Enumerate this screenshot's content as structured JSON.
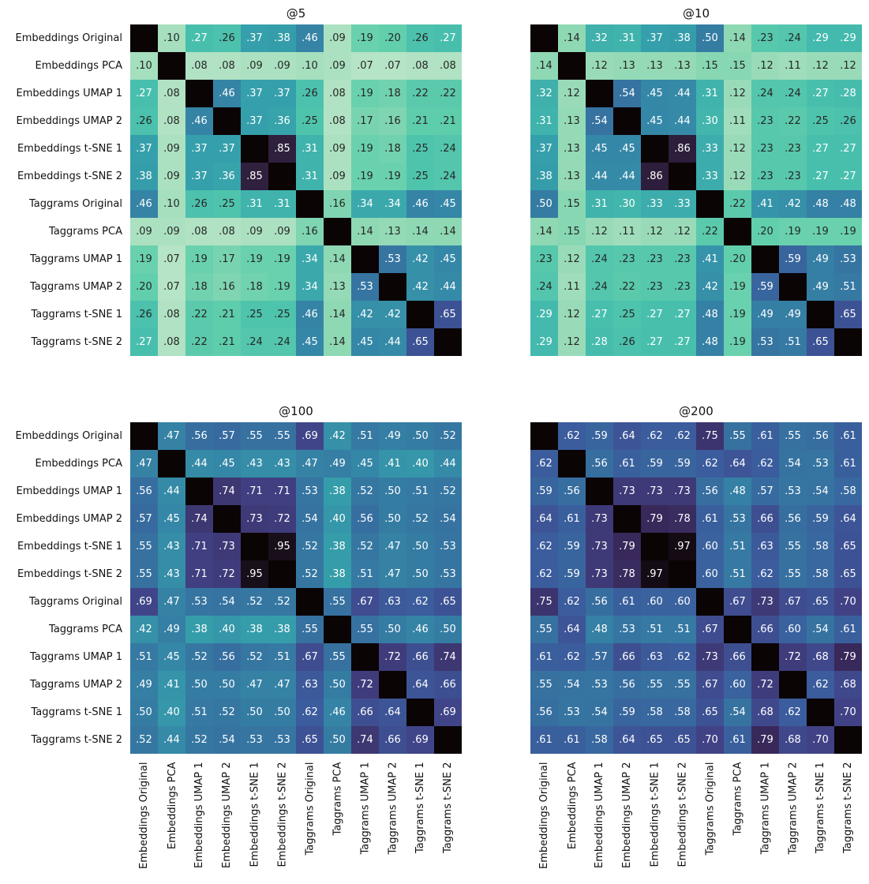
{
  "chart_data": [
    {
      "type": "heatmap",
      "title": "@5",
      "labels": [
        "Embeddings Original",
        "Embeddings PCA",
        "Embeddings UMAP 1",
        "Embeddings UMAP 2",
        "Embeddings t-SNE 1",
        "Embeddings t-SNE 2",
        "Taggrams Original",
        "Taggrams PCA",
        "Taggrams UMAP 1",
        "Taggrams UMAP 2",
        "Taggrams t-SNE 1",
        "Taggrams t-SNE 2"
      ],
      "matrix": [
        [
          null,
          0.1,
          0.27,
          0.26,
          0.37,
          0.38,
          0.46,
          0.09,
          0.19,
          0.2,
          0.26,
          0.27
        ],
        [
          0.1,
          null,
          0.08,
          0.08,
          0.09,
          0.09,
          0.1,
          0.09,
          0.07,
          0.07,
          0.08,
          0.08
        ],
        [
          0.27,
          0.08,
          null,
          0.46,
          0.37,
          0.37,
          0.26,
          0.08,
          0.19,
          0.18,
          0.22,
          0.22
        ],
        [
          0.26,
          0.08,
          0.46,
          null,
          0.37,
          0.36,
          0.25,
          0.08,
          0.17,
          0.16,
          0.21,
          0.21
        ],
        [
          0.37,
          0.09,
          0.37,
          0.37,
          null,
          0.85,
          0.31,
          0.09,
          0.19,
          0.18,
          0.25,
          0.24
        ],
        [
          0.38,
          0.09,
          0.37,
          0.36,
          0.85,
          null,
          0.31,
          0.09,
          0.19,
          0.19,
          0.25,
          0.24
        ],
        [
          0.46,
          0.1,
          0.26,
          0.25,
          0.31,
          0.31,
          null,
          0.16,
          0.34,
          0.34,
          0.46,
          0.45
        ],
        [
          0.09,
          0.09,
          0.08,
          0.08,
          0.09,
          0.09,
          0.16,
          null,
          0.14,
          0.13,
          0.14,
          0.14
        ],
        [
          0.19,
          0.07,
          0.19,
          0.17,
          0.19,
          0.19,
          0.34,
          0.14,
          null,
          0.53,
          0.42,
          0.45
        ],
        [
          0.2,
          0.07,
          0.18,
          0.16,
          0.18,
          0.19,
          0.34,
          0.13,
          0.53,
          null,
          0.42,
          0.44
        ],
        [
          0.26,
          0.08,
          0.22,
          0.21,
          0.25,
          0.25,
          0.46,
          0.14,
          0.42,
          0.42,
          null,
          0.65
        ],
        [
          0.27,
          0.08,
          0.22,
          0.21,
          0.24,
          0.24,
          0.45,
          0.14,
          0.45,
          0.44,
          0.65,
          null
        ]
      ]
    },
    {
      "type": "heatmap",
      "title": "@10",
      "labels": [
        "Embeddings Original",
        "Embeddings PCA",
        "Embeddings UMAP 1",
        "Embeddings UMAP 2",
        "Embeddings t-SNE 1",
        "Embeddings t-SNE 2",
        "Taggrams Original",
        "Taggrams PCA",
        "Taggrams UMAP 1",
        "Taggrams UMAP 2",
        "Taggrams t-SNE 1",
        "Taggrams t-SNE 2"
      ],
      "matrix": [
        [
          null,
          0.14,
          0.32,
          0.31,
          0.37,
          0.38,
          0.5,
          0.14,
          0.23,
          0.24,
          0.29,
          0.29
        ],
        [
          0.14,
          null,
          0.12,
          0.13,
          0.13,
          0.13,
          0.15,
          0.15,
          0.12,
          0.11,
          0.12,
          0.12
        ],
        [
          0.32,
          0.12,
          null,
          0.54,
          0.45,
          0.44,
          0.31,
          0.12,
          0.24,
          0.24,
          0.27,
          0.28
        ],
        [
          0.31,
          0.13,
          0.54,
          null,
          0.45,
          0.44,
          0.3,
          0.11,
          0.23,
          0.22,
          0.25,
          0.26
        ],
        [
          0.37,
          0.13,
          0.45,
          0.45,
          null,
          0.86,
          0.33,
          0.12,
          0.23,
          0.23,
          0.27,
          0.27
        ],
        [
          0.38,
          0.13,
          0.44,
          0.44,
          0.86,
          null,
          0.33,
          0.12,
          0.23,
          0.23,
          0.27,
          0.27
        ],
        [
          0.5,
          0.15,
          0.31,
          0.3,
          0.33,
          0.33,
          null,
          0.22,
          0.41,
          0.42,
          0.48,
          0.48
        ],
        [
          0.14,
          0.15,
          0.12,
          0.11,
          0.12,
          0.12,
          0.22,
          null,
          0.2,
          0.19,
          0.19,
          0.19
        ],
        [
          0.23,
          0.12,
          0.24,
          0.23,
          0.23,
          0.23,
          0.41,
          0.2,
          null,
          0.59,
          0.49,
          0.53
        ],
        [
          0.24,
          0.11,
          0.24,
          0.22,
          0.23,
          0.23,
          0.42,
          0.19,
          0.59,
          null,
          0.49,
          0.51
        ],
        [
          0.29,
          0.12,
          0.27,
          0.25,
          0.27,
          0.27,
          0.48,
          0.19,
          0.49,
          0.49,
          null,
          0.65
        ],
        [
          0.29,
          0.12,
          0.28,
          0.26,
          0.27,
          0.27,
          0.48,
          0.19,
          0.53,
          0.51,
          0.65,
          null
        ]
      ]
    },
    {
      "type": "heatmap",
      "title": "@100",
      "labels": [
        "Embeddings Original",
        "Embeddings PCA",
        "Embeddings UMAP 1",
        "Embeddings UMAP 2",
        "Embeddings t-SNE 1",
        "Embeddings t-SNE 2",
        "Taggrams Original",
        "Taggrams PCA",
        "Taggrams UMAP 1",
        "Taggrams UMAP 2",
        "Taggrams t-SNE 1",
        "Taggrams t-SNE 2"
      ],
      "matrix": [
        [
          null,
          0.47,
          0.56,
          0.57,
          0.55,
          0.55,
          0.69,
          0.42,
          0.51,
          0.49,
          0.5,
          0.52
        ],
        [
          0.47,
          null,
          0.44,
          0.45,
          0.43,
          0.43,
          0.47,
          0.49,
          0.45,
          0.41,
          0.4,
          0.44
        ],
        [
          0.56,
          0.44,
          null,
          0.74,
          0.71,
          0.71,
          0.53,
          0.38,
          0.52,
          0.5,
          0.51,
          0.52
        ],
        [
          0.57,
          0.45,
          0.74,
          null,
          0.73,
          0.72,
          0.54,
          0.4,
          0.56,
          0.5,
          0.52,
          0.54
        ],
        [
          0.55,
          0.43,
          0.71,
          0.73,
          null,
          0.95,
          0.52,
          0.38,
          0.52,
          0.47,
          0.5,
          0.53
        ],
        [
          0.55,
          0.43,
          0.71,
          0.72,
          0.95,
          null,
          0.52,
          0.38,
          0.51,
          0.47,
          0.5,
          0.53
        ],
        [
          0.69,
          0.47,
          0.53,
          0.54,
          0.52,
          0.52,
          null,
          0.55,
          0.67,
          0.63,
          0.62,
          0.65
        ],
        [
          0.42,
          0.49,
          0.38,
          0.4,
          0.38,
          0.38,
          0.55,
          null,
          0.55,
          0.5,
          0.46,
          0.5
        ],
        [
          0.51,
          0.45,
          0.52,
          0.56,
          0.52,
          0.51,
          0.67,
          0.55,
          null,
          0.72,
          0.66,
          0.74
        ],
        [
          0.49,
          0.41,
          0.5,
          0.5,
          0.47,
          0.47,
          0.63,
          0.5,
          0.72,
          null,
          0.64,
          0.66
        ],
        [
          0.5,
          0.4,
          0.51,
          0.52,
          0.5,
          0.5,
          0.62,
          0.46,
          0.66,
          0.64,
          null,
          0.69
        ],
        [
          0.52,
          0.44,
          0.52,
          0.54,
          0.53,
          0.53,
          0.65,
          0.5,
          0.74,
          0.66,
          0.69,
          null
        ]
      ]
    },
    {
      "type": "heatmap",
      "title": "@200",
      "labels": [
        "Embeddings Original",
        "Embeddings PCA",
        "Embeddings UMAP 1",
        "Embeddings UMAP 2",
        "Embeddings t-SNE 1",
        "Embeddings t-SNE 2",
        "Taggrams Original",
        "Taggrams PCA",
        "Taggrams UMAP 1",
        "Taggrams UMAP 2",
        "Taggrams t-SNE 1",
        "Taggrams t-SNE 2"
      ],
      "matrix": [
        [
          null,
          0.62,
          0.59,
          0.64,
          0.62,
          0.62,
          0.75,
          0.55,
          0.61,
          0.55,
          0.56,
          0.61
        ],
        [
          0.62,
          null,
          0.56,
          0.61,
          0.59,
          0.59,
          0.62,
          0.64,
          0.62,
          0.54,
          0.53,
          0.61
        ],
        [
          0.59,
          0.56,
          null,
          0.73,
          0.73,
          0.73,
          0.56,
          0.48,
          0.57,
          0.53,
          0.54,
          0.58
        ],
        [
          0.64,
          0.61,
          0.73,
          null,
          0.79,
          0.78,
          0.61,
          0.53,
          0.66,
          0.56,
          0.59,
          0.64
        ],
        [
          0.62,
          0.59,
          0.73,
          0.79,
          null,
          0.97,
          0.6,
          0.51,
          0.63,
          0.55,
          0.58,
          0.65
        ],
        [
          0.62,
          0.59,
          0.73,
          0.78,
          0.97,
          null,
          0.6,
          0.51,
          0.62,
          0.55,
          0.58,
          0.65
        ],
        [
          0.75,
          0.62,
          0.56,
          0.61,
          0.6,
          0.6,
          null,
          0.67,
          0.73,
          0.67,
          0.65,
          0.7
        ],
        [
          0.55,
          0.64,
          0.48,
          0.53,
          0.51,
          0.51,
          0.67,
          null,
          0.66,
          0.6,
          0.54,
          0.61
        ],
        [
          0.61,
          0.62,
          0.57,
          0.66,
          0.63,
          0.62,
          0.73,
          0.66,
          null,
          0.72,
          0.68,
          0.79
        ],
        [
          0.55,
          0.54,
          0.53,
          0.56,
          0.55,
          0.55,
          0.67,
          0.6,
          0.72,
          null,
          0.62,
          0.68
        ],
        [
          0.56,
          0.53,
          0.54,
          0.59,
          0.58,
          0.58,
          0.65,
          0.54,
          0.68,
          0.62,
          null,
          0.7
        ],
        [
          0.61,
          0.61,
          0.58,
          0.64,
          0.65,
          0.65,
          0.7,
          0.61,
          0.79,
          0.68,
          0.7,
          null
        ]
      ]
    }
  ],
  "colormap": "mako_r",
  "diagonal_color": "#0b0405",
  "value_range": [
    0,
    1
  ]
}
